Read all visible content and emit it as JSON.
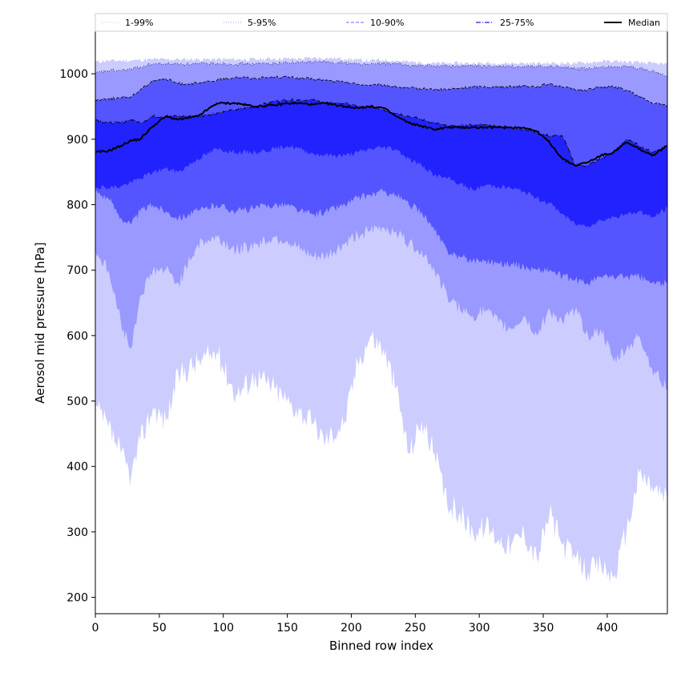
{
  "chart_data": {
    "type": "area",
    "xlabel": "Binned row index",
    "ylabel": "Aerosol mid pressure [hPa]",
    "xlim": [
      0,
      447
    ],
    "ylim": [
      175,
      1065
    ],
    "x_ticks": [
      "0",
      "50",
      "100",
      "150",
      "200",
      "250",
      "300",
      "350",
      "400"
    ],
    "y_ticks": [
      "200",
      "300",
      "400",
      "500",
      "600",
      "700",
      "800",
      "900",
      "1000"
    ],
    "grid": false,
    "legend_position": "top",
    "legend": [
      {
        "label": "1-99%",
        "style": "dotted",
        "color": "#ccccff"
      },
      {
        "label": "5-95%",
        "style": "dotted",
        "color": "#9999ee"
      },
      {
        "label": "10-90%",
        "style": "dashed",
        "color": "#8888ff"
      },
      {
        "label": "25-75%",
        "style": "dashdot",
        "color": "#4444dd"
      },
      {
        "label": "Median",
        "style": "solid",
        "color": "#000000"
      }
    ],
    "x": [
      0,
      10,
      20,
      28,
      35,
      45,
      55,
      65,
      80,
      95,
      110,
      125,
      140,
      150,
      160,
      170,
      180,
      195,
      205,
      215,
      225,
      235,
      245,
      255,
      265,
      275,
      285,
      295,
      305,
      315,
      325,
      335,
      345,
      355,
      365,
      375,
      385,
      395,
      405,
      415,
      425,
      435,
      447
    ],
    "series": [
      {
        "name": "1-99%",
        "color": "#ccccff",
        "upper": [
          1018,
          1020,
          1020,
          1020,
          1021,
          1022,
          1022,
          1022,
          1022,
          1022,
          1022,
          1022,
          1023,
          1023,
          1023,
          1024,
          1024,
          1023,
          1021,
          1020,
          1021,
          1020,
          1018,
          1017,
          1016,
          1016,
          1016,
          1016,
          1016,
          1016,
          1016,
          1016,
          1016,
          1016,
          1016,
          1016,
          1017,
          1019,
          1019,
          1018,
          1017,
          1016,
          1014
        ],
        "lower": [
          490,
          460,
          420,
          385,
          440,
          490,
          470,
          540,
          560,
          575,
          510,
          540,
          520,
          500,
          485,
          465,
          440,
          470,
          560,
          600,
          580,
          520,
          420,
          470,
          420,
          340,
          330,
          300,
          310,
          290,
          280,
          300,
          260,
          330,
          280,
          260,
          240,
          250,
          230,
          300,
          390,
          370,
          350
        ]
      },
      {
        "name": "5-95%",
        "color": "#9999ff",
        "upper": [
          1000,
          1005,
          1005,
          1007,
          1010,
          1015,
          1015,
          1015,
          1015,
          1016,
          1015,
          1015,
          1016,
          1017,
          1017,
          1018,
          1018,
          1017,
          1015,
          1014,
          1016,
          1015,
          1013,
          1012,
          1012,
          1012,
          1012,
          1012,
          1011,
          1011,
          1011,
          1011,
          1011,
          1011,
          1010,
          1008,
          1007,
          1010,
          1011,
          1010,
          1008,
          1004,
          996
        ],
        "lower": [
          730,
          700,
          620,
          580,
          660,
          700,
          700,
          680,
          740,
          750,
          730,
          740,
          750,
          745,
          730,
          720,
          720,
          740,
          755,
          760,
          765,
          760,
          740,
          730,
          700,
          660,
          640,
          630,
          640,
          620,
          610,
          630,
          600,
          640,
          620,
          640,
          600,
          610,
          560,
          580,
          600,
          550,
          520
        ]
      },
      {
        "name": "10-90%",
        "color": "#5555ff",
        "upper": [
          960,
          962,
          963,
          965,
          975,
          990,
          992,
          985,
          985,
          990,
          995,
          993,
          995,
          995,
          993,
          992,
          990,
          987,
          984,
          982,
          983,
          980,
          978,
          977,
          976,
          976,
          978,
          980,
          980,
          980,
          980,
          982,
          980,
          985,
          980,
          975,
          976,
          980,
          980,
          975,
          965,
          955,
          952
        ],
        "lower": [
          820,
          810,
          780,
          770,
          790,
          800,
          790,
          780,
          790,
          800,
          790,
          795,
          800,
          800,
          790,
          785,
          790,
          800,
          810,
          815,
          820,
          815,
          800,
          790,
          760,
          730,
          720,
          715,
          715,
          710,
          710,
          705,
          700,
          700,
          690,
          685,
          680,
          690,
          690,
          690,
          690,
          680,
          680
        ]
      },
      {
        "name": "25-75%",
        "color": "#2222ff",
        "upper": [
          930,
          925,
          925,
          930,
          925,
          935,
          935,
          935,
          935,
          940,
          945,
          950,
          958,
          960,
          960,
          960,
          955,
          955,
          950,
          948,
          945,
          940,
          935,
          930,
          925,
          920,
          920,
          922,
          922,
          920,
          918,
          915,
          910,
          905,
          905,
          860,
          860,
          870,
          880,
          900,
          890,
          880,
          890
        ],
        "lower": [
          828,
          826,
          828,
          834,
          840,
          850,
          855,
          850,
          870,
          885,
          880,
          880,
          885,
          890,
          885,
          878,
          876,
          875,
          880,
          885,
          888,
          885,
          870,
          860,
          845,
          840,
          832,
          822,
          830,
          828,
          825,
          820,
          810,
          802,
          786,
          770,
          768,
          776,
          781,
          785,
          790,
          780,
          795
        ]
      }
    ],
    "median": [
      880,
      882,
      890,
      898,
      900,
      920,
      935,
      930,
      935,
      955,
      955,
      950,
      952,
      955,
      955,
      953,
      955,
      950,
      948,
      950,
      948,
      935,
      925,
      920,
      915,
      918,
      918,
      918,
      918,
      918,
      918,
      918,
      912,
      895,
      870,
      860,
      865,
      875,
      880,
      895,
      885,
      875,
      890
    ]
  }
}
